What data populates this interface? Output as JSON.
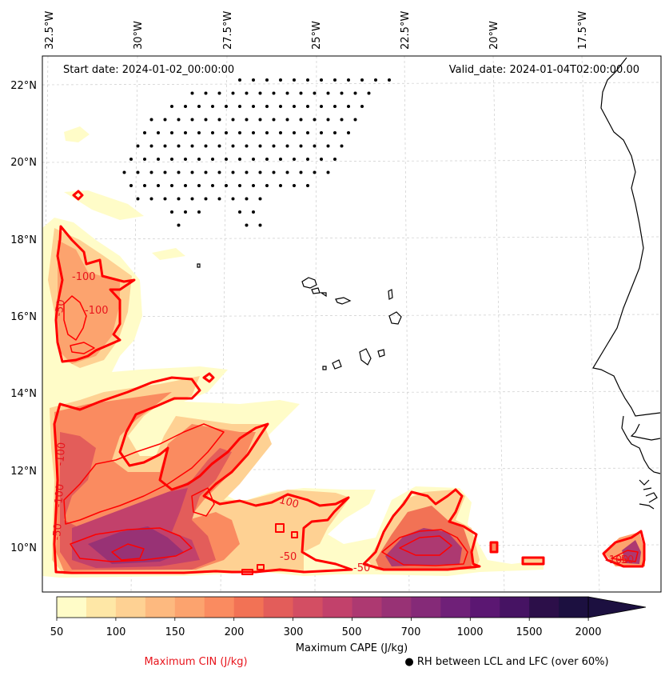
{
  "map": {
    "start_label": "Start date: 2024-01-02_00:00:00",
    "valid_label": "Valid_date: 2024-01-04T02:00:00.00",
    "lon_labels": [
      "32.5°W",
      "30°W",
      "27.5°W",
      "25°W",
      "22.5°W",
      "20°W",
      "17.5°W"
    ],
    "lat_labels": [
      "22°N",
      "20°N",
      "18°N",
      "16°N",
      "14°N",
      "12°N",
      "10°N"
    ],
    "cin_contour_labels": [
      "-100",
      "-100",
      "-50",
      "-100",
      "-100",
      "-50",
      "-100",
      "-50",
      "-50",
      "-50",
      "-100"
    ],
    "colors": {
      "cin_contour": "#ff0000",
      "coastline": "#000000",
      "gridline": "#cccccc",
      "rh_marker": "#000000"
    }
  },
  "colorbar": {
    "ticks": [
      "50",
      "100",
      "150",
      "200",
      "300",
      "500",
      "700",
      "1000",
      "1500",
      "2000"
    ],
    "label": "Maximum CAPE (J/kg)",
    "colors": [
      "#fffcc8",
      "#fee7a6",
      "#fed193",
      "#fdb97f",
      "#fca36e",
      "#fa8b60",
      "#f27255",
      "#e35d5a",
      "#d34e63",
      "#c2416b",
      "#ad3971",
      "#983275",
      "#852a78",
      "#6f2078",
      "#5b1772",
      "#461363",
      "#2c0f49",
      "#1c1040"
    ]
  },
  "legend": {
    "cin_label": "Maximum CIN (J/kg)",
    "rh_label": "● RH between LCL and LFC (over 60%)"
  }
}
